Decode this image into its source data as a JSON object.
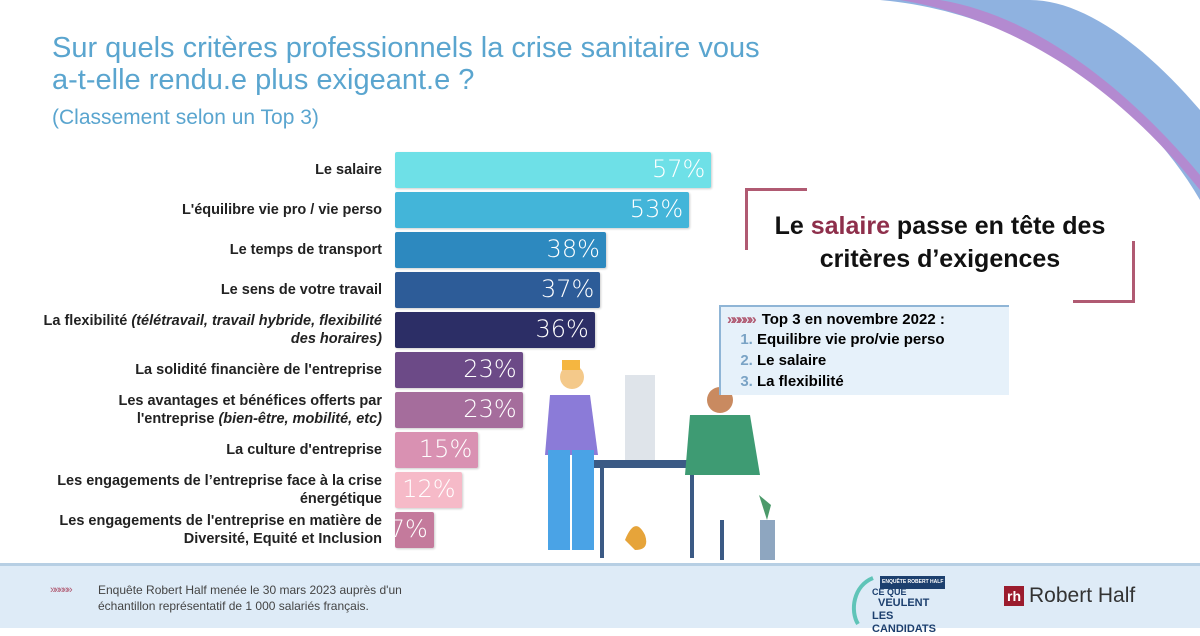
{
  "header": {
    "title_line1": "Sur quels critères professionnels la crise sanitaire vous",
    "title_line2": "a-t-elle rendu.e plus exigeant.e ?",
    "subtitle": "(Classement selon un Top 3)"
  },
  "chart_data": {
    "type": "bar",
    "orientation": "horizontal",
    "title": "Sur quels critères professionnels la crise sanitaire vous a-t-elle rendu.e plus exigeant.e ?",
    "categories": [
      {
        "main": "Le salaire",
        "italic": ""
      },
      {
        "main": "L'équilibre vie pro / vie perso",
        "italic": ""
      },
      {
        "main": "Le temps de transport",
        "italic": ""
      },
      {
        "main": "Le sens de votre travail",
        "italic": ""
      },
      {
        "main": "La flexibilité ",
        "italic": "(télétravail, travail hybride, flexibilité des horaires)"
      },
      {
        "main": "La solidité financière de l'entreprise",
        "italic": ""
      },
      {
        "main": "Les avantages et bénéfices offerts par l'entreprise ",
        "italic": "(bien-être, mobilité, etc)"
      },
      {
        "main": "La culture d'entreprise",
        "italic": ""
      },
      {
        "main": "Les engagements de l’entreprise face à la crise énergétique",
        "italic": ""
      },
      {
        "main": "Les engagements de l'entreprise en matière de Diversité, Equité et Inclusion",
        "italic": ""
      }
    ],
    "values": [
      57,
      53,
      38,
      37,
      36,
      23,
      23,
      15,
      12,
      7
    ],
    "value_labels": [
      "57%",
      "53%",
      "38%",
      "37%",
      "36%",
      "23%",
      "23%",
      "15%",
      "12%",
      "7%"
    ],
    "colors": [
      "#6ee0e7",
      "#43b5d9",
      "#2d89bf",
      "#2d5c98",
      "#2c2e66",
      "#6c4a87",
      "#a56d9c",
      "#d991b2",
      "#f6bac8",
      "#c47a9c"
    ],
    "xlim": [
      0,
      100
    ]
  },
  "callout": {
    "pre": "Le ",
    "highlight": "salaire",
    "post": " passe en tête des critères d’exigences"
  },
  "top3": {
    "heading": "Top 3 en novembre 2022 :",
    "items": [
      "Equilibre vie pro/vie perso",
      "Le salaire",
      "La flexibilité"
    ]
  },
  "footer": {
    "note_line1": "Enquête Robert Half menée le 30 mars 2023 auprès d'un",
    "note_line2": "échantillon représentatif de 1 000 salariés français.",
    "logo_candidats": [
      "CE QUE",
      "VEULENT",
      "LES CANDIDATS"
    ],
    "logo_badge": "ENQUÊTE ROBERT HALF",
    "brand_mark": "rh",
    "brand": "Robert Half"
  }
}
